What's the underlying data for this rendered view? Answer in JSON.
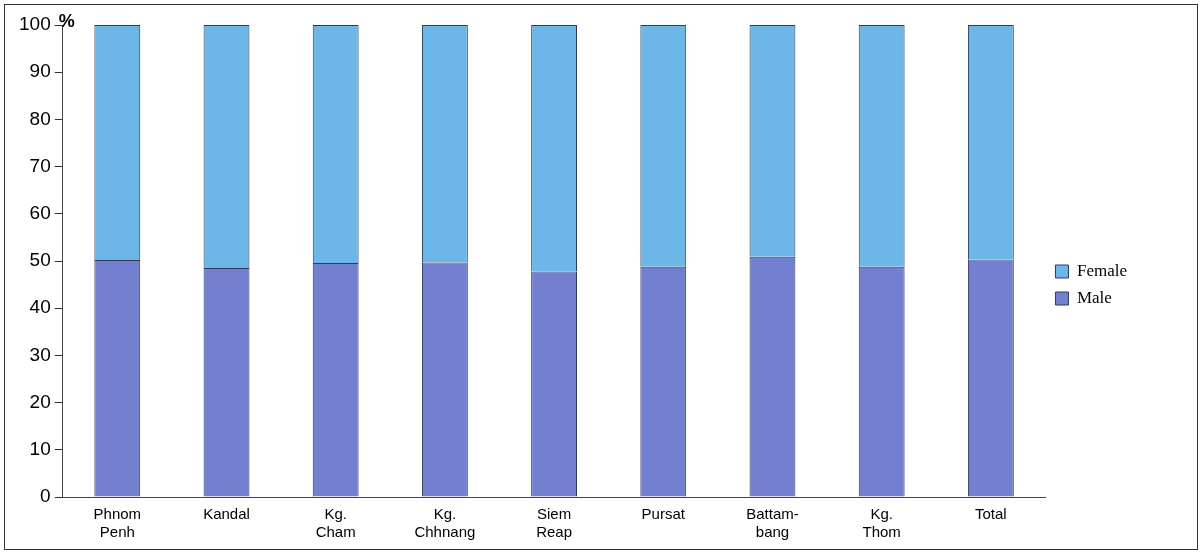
{
  "chart_data": {
    "type": "bar",
    "stacked": true,
    "ylabel": "%",
    "categories": [
      "Phnom Penh",
      "Kandal",
      "Kg. Cham",
      "Kg. Chhnang",
      "Siem Reap",
      "Pursat",
      "Battam-bang",
      "Kg. Thom",
      "Total"
    ],
    "series": [
      {
        "name": "Male",
        "color": "#7280cf",
        "values": [
          50.2,
          48.5,
          49.6,
          49.7,
          47.8,
          48.8,
          50.9,
          48.8,
          50.3
        ]
      },
      {
        "name": "Female",
        "color": "#6cb6e8",
        "values": [
          49.8,
          51.5,
          50.4,
          50.3,
          52.2,
          51.2,
          49.1,
          51.2,
          49.7
        ]
      }
    ],
    "ylim": [
      0,
      100
    ],
    "yticks": [
      0,
      10,
      20,
      30,
      40,
      50,
      60,
      70,
      80,
      90,
      100
    ],
    "grid": false,
    "legend": "right"
  }
}
